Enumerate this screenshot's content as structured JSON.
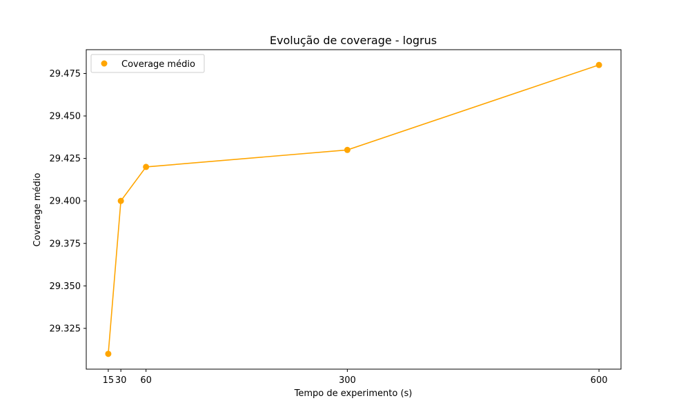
{
  "chart_data": {
    "type": "line",
    "title": "Evolução de coverage - logrus",
    "xlabel": "Tempo de experimento (s)",
    "ylabel": "Coverage médio",
    "x": [
      15,
      30,
      60,
      300,
      600
    ],
    "xticks": [
      "15",
      "30",
      "60",
      "300",
      "600"
    ],
    "yticks": [
      "29.325",
      "29.350",
      "29.375",
      "29.400",
      "29.425",
      "29.450",
      "29.475"
    ],
    "ytick_values": [
      29.325,
      29.35,
      29.375,
      29.4,
      29.425,
      29.45,
      29.475
    ],
    "xlim": [
      -11.25,
      626.25
    ],
    "ylim": [
      29.301,
      29.489
    ],
    "series": [
      {
        "name": "Coverage médio",
        "values": [
          29.31,
          29.4,
          29.42,
          29.43,
          29.48
        ]
      }
    ],
    "color": "#FFA500",
    "legend": "top-left",
    "grid": false
  }
}
